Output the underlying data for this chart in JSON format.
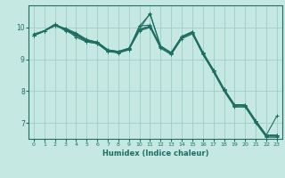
{
  "xlabel": "Humidex (Indice chaleur)",
  "bg_color": "#c5e8e2",
  "grid_color": "#9ecec6",
  "line_color": "#1e6e62",
  "x_values": [
    0,
    1,
    2,
    3,
    4,
    5,
    6,
    7,
    8,
    9,
    10,
    11,
    12,
    13,
    14,
    15,
    16,
    17,
    18,
    19,
    20,
    21,
    22,
    23
  ],
  "series": [
    [
      9.75,
      9.9,
      10.1,
      9.95,
      9.8,
      9.6,
      9.55,
      9.3,
      9.25,
      9.35,
      9.95,
      10.45,
      9.4,
      9.2,
      9.7,
      9.85,
      9.2,
      8.65,
      8.05,
      7.55,
      7.55,
      7.05,
      6.6,
      6.6
    ],
    [
      9.75,
      9.9,
      10.1,
      9.95,
      9.8,
      9.6,
      9.55,
      9.3,
      9.25,
      9.35,
      9.95,
      10.05,
      9.4,
      9.2,
      9.7,
      9.85,
      9.2,
      8.65,
      8.05,
      7.55,
      7.55,
      7.05,
      6.6,
      6.6
    ],
    [
      9.75,
      9.9,
      10.1,
      9.93,
      9.78,
      9.58,
      9.52,
      9.28,
      9.23,
      9.33,
      9.93,
      10.03,
      9.38,
      9.18,
      9.68,
      9.83,
      9.18,
      8.63,
      8.03,
      7.53,
      7.53,
      7.03,
      6.58,
      6.58
    ],
    [
      9.75,
      9.88,
      10.08,
      9.9,
      9.75,
      9.55,
      9.5,
      9.25,
      9.2,
      9.3,
      9.9,
      10.0,
      9.35,
      9.15,
      9.65,
      9.8,
      9.15,
      8.6,
      8.0,
      7.5,
      7.5,
      7.0,
      6.55,
      6.55
    ],
    [
      9.8,
      9.9,
      10.05,
      9.98,
      9.83,
      9.63,
      9.53,
      9.28,
      9.23,
      9.33,
      10.05,
      10.08,
      9.42,
      9.22,
      9.72,
      9.87,
      9.22,
      8.67,
      8.07,
      7.57,
      7.57,
      7.07,
      6.62,
      6.62
    ]
  ],
  "volatile_series": [
    9.75,
    9.9,
    10.1,
    9.95,
    9.7,
    9.55,
    9.5,
    9.25,
    9.22,
    9.3,
    10.05,
    10.42,
    9.42,
    9.18,
    9.72,
    9.87,
    9.22,
    8.67,
    8.07,
    7.57,
    7.57,
    7.07,
    6.62,
    7.22
  ],
  "ylim": [
    6.5,
    10.7
  ],
  "yticks": [
    7,
    8,
    9,
    10
  ],
  "xlim": [
    -0.5,
    23.5
  ],
  "xticks": [
    0,
    1,
    2,
    3,
    4,
    5,
    6,
    7,
    8,
    9,
    10,
    11,
    12,
    13,
    14,
    15,
    16,
    17,
    18,
    19,
    20,
    21,
    22,
    23
  ]
}
